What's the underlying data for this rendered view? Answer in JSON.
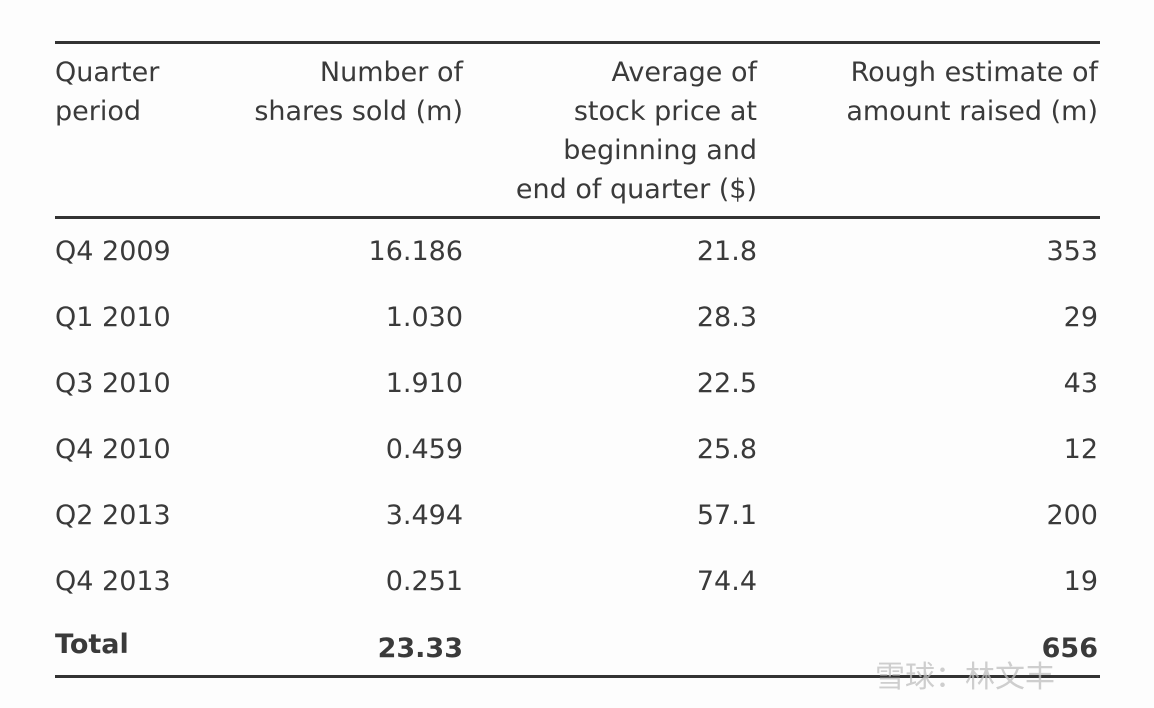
{
  "table": {
    "header": [
      [
        "Quarter",
        "period"
      ],
      [
        "Number of",
        "shares sold (m)"
      ],
      [
        "Average of",
        "stock price at",
        "beginning and",
        "end of quarter ($)"
      ],
      [
        "Rough estimate of",
        "amount raised (m)"
      ]
    ],
    "rows": [
      [
        "Q4 2009",
        "16.186",
        "21.8",
        "353"
      ],
      [
        "Q1 2010",
        "1.030",
        "28.3",
        "29"
      ],
      [
        "Q3 2010",
        "1.910",
        "22.5",
        "43"
      ],
      [
        "Q4 2010",
        "0.459",
        "25.8",
        "12"
      ],
      [
        "Q2 2013",
        "3.494",
        "57.1",
        "200"
      ],
      [
        "Q4 2013",
        "0.251",
        "74.4",
        "19"
      ]
    ],
    "total": {
      "label": "Total",
      "shares": "23.33",
      "amount": "656"
    }
  },
  "watermark": "雪球：林文丰"
}
